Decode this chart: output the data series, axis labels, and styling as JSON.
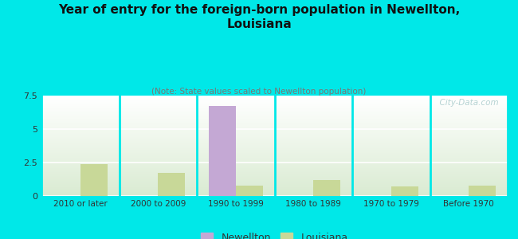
{
  "title": "Year of entry for the foreign-born population in Newellton,\nLouisiana",
  "subtitle": "(Note: State values scaled to Newellton population)",
  "categories": [
    "2010 or later",
    "2000 to 2009",
    "1990 to 1999",
    "1980 to 1989",
    "1970 to 1979",
    "Before 1970"
  ],
  "newellton_values": [
    0,
    0,
    6.7,
    0,
    0,
    0
  ],
  "louisiana_values": [
    2.4,
    1.7,
    0.8,
    1.2,
    0.7,
    0.8
  ],
  "newellton_color": "#c4a8d4",
  "louisiana_color": "#c8d898",
  "background_color": "#00e8e8",
  "ylim": [
    0,
    7.5
  ],
  "yticks": [
    0,
    2.5,
    5,
    7.5
  ],
  "bar_width": 0.35,
  "legend_labels": [
    "Newellton",
    "Louisiana"
  ],
  "watermark": "  City-Data.com"
}
